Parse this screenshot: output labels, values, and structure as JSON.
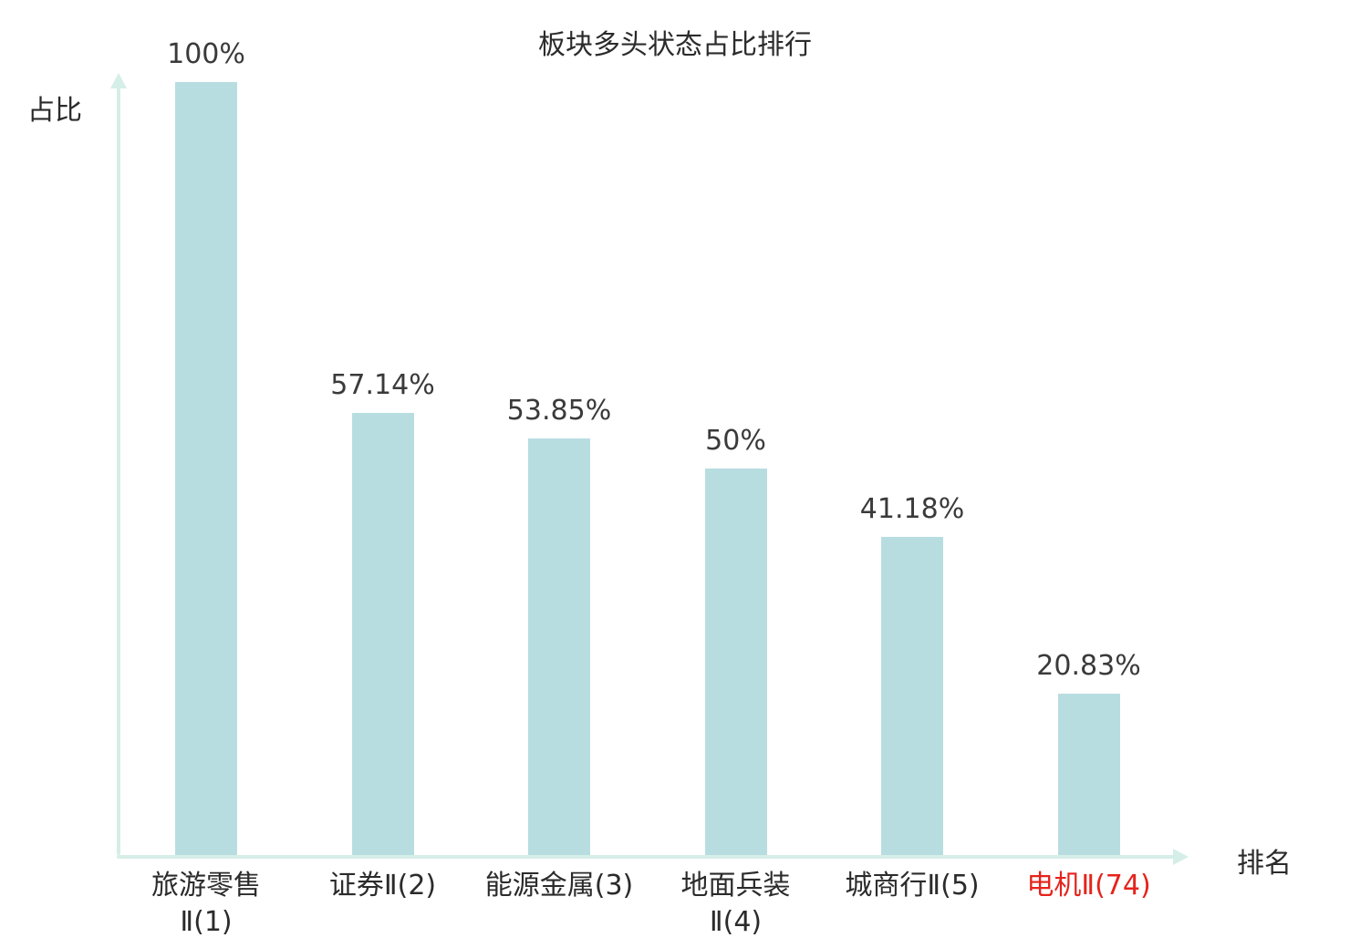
{
  "chart_data": {
    "type": "bar",
    "title": "板块多头状态占比排行",
    "xlabel": "排名",
    "ylabel": "占比",
    "categories": [
      "旅游零售\nⅡ(1)",
      "证券Ⅱ(2)",
      "能源金属(3)",
      "地面兵装\nⅡ(4)",
      "城商行Ⅱ(5)",
      "电机Ⅱ(74)"
    ],
    "values": [
      100,
      57.14,
      53.85,
      50,
      41.18,
      20.83
    ],
    "value_labels": [
      "100%",
      "57.14%",
      "53.85%",
      "50%",
      "41.18%",
      "20.83%"
    ],
    "highlight_index": 5,
    "ylim": [
      0,
      100
    ],
    "grid": false,
    "legend": "none",
    "colors": {
      "bar": "#b8dde1",
      "axis": "#d6eee8",
      "text": "#2b2b2b",
      "value_text": "#3a3a3a",
      "highlight": "#e5231b"
    }
  }
}
